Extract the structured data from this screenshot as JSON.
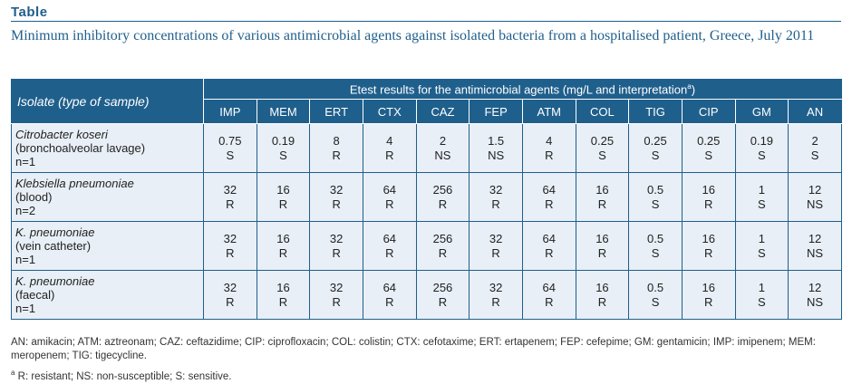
{
  "header": {
    "label": "Table"
  },
  "caption": "Minimum inhibitory concentrations of various antimicrobial agents against isolated bacteria from a hospitalised patient, Greece, July 2011",
  "table": {
    "isolate_header": "Isolate (type of sample)",
    "group_header": "Etest results for the antimicrobial agents (mg/L and interpretation",
    "group_header_sup": "a",
    "group_header_end": ")",
    "agents": [
      "IMP",
      "MEM",
      "ERT",
      "CTX",
      "CAZ",
      "FEP",
      "ATM",
      "COL",
      "TIG",
      "CIP",
      "GM",
      "AN"
    ],
    "rows": [
      {
        "species": "Citrobacter koseri",
        "sample": "(bronchoalveolar lavage)",
        "count": "n=1",
        "cells": [
          {
            "mic": "0.75",
            "interp": "S"
          },
          {
            "mic": "0.19",
            "interp": "S"
          },
          {
            "mic": "8",
            "interp": "R"
          },
          {
            "mic": "4",
            "interp": "R"
          },
          {
            "mic": "2",
            "interp": "NS"
          },
          {
            "mic": "1.5",
            "interp": "NS"
          },
          {
            "mic": "4",
            "interp": "R"
          },
          {
            "mic": "0.25",
            "interp": "S"
          },
          {
            "mic": "0.25",
            "interp": "S"
          },
          {
            "mic": "0.25",
            "interp": "S"
          },
          {
            "mic": "0.19",
            "interp": "S"
          },
          {
            "mic": "2",
            "interp": "S"
          }
        ]
      },
      {
        "species": "Klebsiella pneumoniae",
        "sample": "(blood)",
        "count": "n=2",
        "cells": [
          {
            "mic": "32",
            "interp": "R"
          },
          {
            "mic": "16",
            "interp": "R"
          },
          {
            "mic": "32",
            "interp": "R"
          },
          {
            "mic": "64",
            "interp": "R"
          },
          {
            "mic": "256",
            "interp": "R"
          },
          {
            "mic": "32",
            "interp": "R"
          },
          {
            "mic": "64",
            "interp": "R"
          },
          {
            "mic": "16",
            "interp": "R"
          },
          {
            "mic": "0.5",
            "interp": "S"
          },
          {
            "mic": "16",
            "interp": "R"
          },
          {
            "mic": "1",
            "interp": "S"
          },
          {
            "mic": "12",
            "interp": "NS"
          }
        ]
      },
      {
        "species": "K. pneumoniae",
        "sample": "(vein catheter)",
        "count": "n=1",
        "cells": [
          {
            "mic": "32",
            "interp": "R"
          },
          {
            "mic": "16",
            "interp": "R"
          },
          {
            "mic": "32",
            "interp": "R"
          },
          {
            "mic": "64",
            "interp": "R"
          },
          {
            "mic": "256",
            "interp": "R"
          },
          {
            "mic": "32",
            "interp": "R"
          },
          {
            "mic": "64",
            "interp": "R"
          },
          {
            "mic": "16",
            "interp": "R"
          },
          {
            "mic": "0.5",
            "interp": "S"
          },
          {
            "mic": "16",
            "interp": "R"
          },
          {
            "mic": "1",
            "interp": "S"
          },
          {
            "mic": "12",
            "interp": "NS"
          }
        ]
      },
      {
        "species": "K. pneumoniae",
        "sample": "(faecal)",
        "count": "n=1",
        "cells": [
          {
            "mic": "32",
            "interp": "R"
          },
          {
            "mic": "16",
            "interp": "R"
          },
          {
            "mic": "32",
            "interp": "R"
          },
          {
            "mic": "64",
            "interp": "R"
          },
          {
            "mic": "256",
            "interp": "R"
          },
          {
            "mic": "32",
            "interp": "R"
          },
          {
            "mic": "64",
            "interp": "R"
          },
          {
            "mic": "16",
            "interp": "R"
          },
          {
            "mic": "0.5",
            "interp": "S"
          },
          {
            "mic": "16",
            "interp": "R"
          },
          {
            "mic": "1",
            "interp": "S"
          },
          {
            "mic": "12",
            "interp": "NS"
          }
        ]
      }
    ]
  },
  "footnotes": {
    "abbreviations": "AN: amikacin; ATM: aztreonam; CAZ: ceftazidime; CIP: ciprofloxacin; COL: colistin; CTX: cefotaxime; ERT: ertapenem; FEP: cefepime; GM: gentamicin; IMP: imipenem; MEM: meropenem; TIG: tigecycline.",
    "marker": "a",
    "interpretation": "R: resistant; NS: non-susceptible; S: sensitive."
  },
  "colors": {
    "accent": "#1f5f8c",
    "row_bg": "#e8eff6"
  }
}
